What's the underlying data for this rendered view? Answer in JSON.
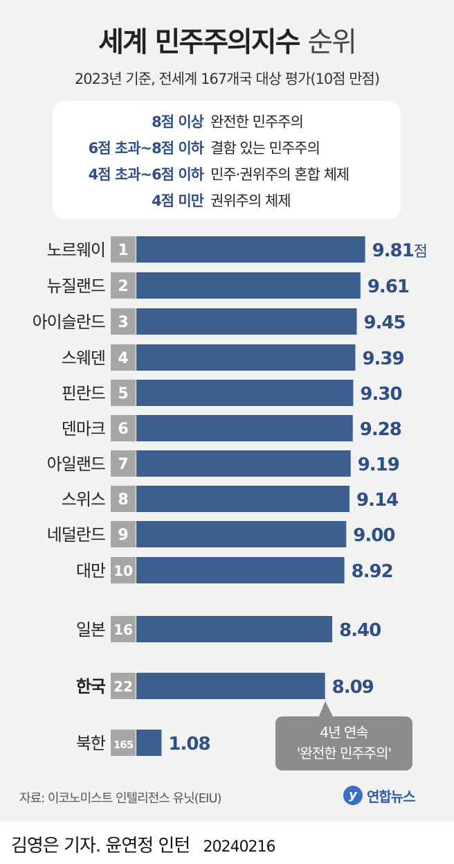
{
  "title": {
    "bold": "세계 민주주의지수",
    "light": "순위"
  },
  "subtitle": "2023년 기준, 전세계 167개국 대상 평가(10점 만점)",
  "legend": [
    {
      "key": "8점 이상",
      "desc": "완전한 민주주의"
    },
    {
      "key": "6점 초과~8점 이하",
      "desc": "결함 있는 민주주의"
    },
    {
      "key": "4점 초과~6점 이하",
      "desc": "민주·권위주의 혼합 체제"
    },
    {
      "key": "4점 미만",
      "desc": "권위주의 체제"
    }
  ],
  "chart_data": {
    "type": "bar",
    "orientation": "horizontal",
    "categories": [
      "노르웨이",
      "뉴질랜드",
      "아이슬란드",
      "스웨덴",
      "핀란드",
      "덴마크",
      "아일랜드",
      "스위스",
      "네덜란드",
      "대만",
      "일본",
      "한국",
      "북한"
    ],
    "ranks": [
      "1",
      "2",
      "3",
      "4",
      "5",
      "6",
      "7",
      "8",
      "9",
      "10",
      "16",
      "22",
      "165"
    ],
    "values": [
      9.81,
      9.61,
      9.45,
      9.39,
      9.3,
      9.28,
      9.19,
      9.14,
      9.0,
      8.92,
      8.4,
      8.09,
      1.08
    ],
    "value_labels": [
      "9.81",
      "9.61",
      "9.45",
      "9.39",
      "9.30",
      "9.28",
      "9.19",
      "9.14",
      "9.00",
      "8.92",
      "8.40",
      "8.09",
      "1.08"
    ],
    "first_value_unit": "점",
    "highlight": "한국",
    "bar_color": "#3d5f90",
    "rank_box_color": "#a6a6a6",
    "label_color": "#2f4e86"
  },
  "callout": {
    "line1": "4년 연속",
    "line2": "'완전한 민주주의'"
  },
  "source": "자료: 이코노미스트 인텔리전스 유닛(EIU)",
  "brand": {
    "mark": "y",
    "name": "연합뉴스"
  },
  "credit": {
    "text": "김영은 기자. 윤연정 인턴",
    "date": "20240216"
  }
}
